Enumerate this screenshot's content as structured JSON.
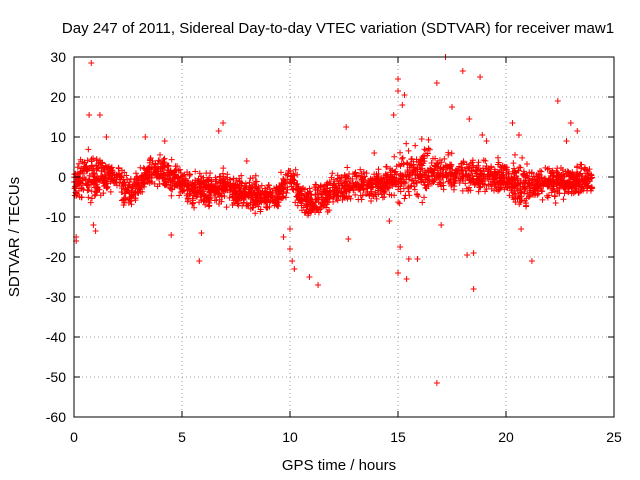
{
  "chart_data": {
    "type": "scatter",
    "title": "Day 247 of 2011, Sidereal Day-to-day VTEC variation (SDTVAR) for receiver maw1",
    "xlabel": "GPS time / hours",
    "ylabel": "SDTVAR / TECUs",
    "xlim": [
      0,
      25
    ],
    "ylim": [
      -60,
      30
    ],
    "xticks": [
      0,
      5,
      10,
      15,
      20,
      25
    ],
    "yticks": [
      -60,
      -50,
      -40,
      -30,
      -20,
      -10,
      0,
      10,
      20,
      30
    ],
    "grid": true,
    "marker": "+",
    "color": "#ff0000",
    "baseline": {
      "x": [
        0,
        1,
        2,
        2.5,
        3,
        3.5,
        4,
        4.5,
        5,
        5.5,
        6,
        7,
        8,
        9,
        9.5,
        10,
        10.5,
        11,
        11.5,
        12,
        12.5,
        13,
        14,
        15,
        16,
        17,
        18,
        19,
        20,
        20.5,
        21,
        22,
        23,
        24
      ],
      "y": [
        -1,
        0,
        0,
        -4,
        -2,
        1,
        1,
        0,
        -2,
        -3,
        -3,
        -3,
        -4,
        -5,
        -4,
        0,
        -5,
        -7,
        -5,
        -4,
        -2,
        -2,
        -2,
        0,
        1,
        1,
        1,
        0,
        0,
        -2,
        -2,
        -1,
        -1,
        -1
      ]
    },
    "outliers": [
      {
        "x": 0.8,
        "y": 28.5
      },
      {
        "x": 0.7,
        "y": 15.5
      },
      {
        "x": 1.2,
        "y": 15.5
      },
      {
        "x": 1.5,
        "y": 10
      },
      {
        "x": 0.1,
        "y": -15
      },
      {
        "x": 0.1,
        "y": -16
      },
      {
        "x": 0.9,
        "y": -12
      },
      {
        "x": 1.0,
        "y": -13.5
      },
      {
        "x": 3.3,
        "y": 10
      },
      {
        "x": 4.2,
        "y": 9
      },
      {
        "x": 4.5,
        "y": -14.5
      },
      {
        "x": 5.8,
        "y": -21
      },
      {
        "x": 5.9,
        "y": -14
      },
      {
        "x": 6.7,
        "y": 11.5
      },
      {
        "x": 6.9,
        "y": 13.5
      },
      {
        "x": 9.7,
        "y": -15
      },
      {
        "x": 10,
        "y": -18
      },
      {
        "x": 10.1,
        "y": -21
      },
      {
        "x": 10.2,
        "y": -23
      },
      {
        "x": 10.0,
        "y": -13
      },
      {
        "x": 10.9,
        "y": -25
      },
      {
        "x": 11.3,
        "y": -27
      },
      {
        "x": 12.7,
        "y": -15.5
      },
      {
        "x": 12.6,
        "y": 12.5
      },
      {
        "x": 14.8,
        "y": 15.5
      },
      {
        "x": 15.0,
        "y": 24.5
      },
      {
        "x": 15.0,
        "y": 21.5
      },
      {
        "x": 15.3,
        "y": 20.5
      },
      {
        "x": 15.2,
        "y": 18
      },
      {
        "x": 15.1,
        "y": -17.5
      },
      {
        "x": 15.0,
        "y": -24
      },
      {
        "x": 15.4,
        "y": -25.5
      },
      {
        "x": 15.5,
        "y": -20.5
      },
      {
        "x": 15.9,
        "y": -20.5
      },
      {
        "x": 14.6,
        "y": -11
      },
      {
        "x": 16.1,
        "y": 9.5
      },
      {
        "x": 16.8,
        "y": 23.5
      },
      {
        "x": 16.8,
        "y": -51.5
      },
      {
        "x": 17.2,
        "y": 30
      },
      {
        "x": 17.0,
        "y": -12
      },
      {
        "x": 17.5,
        "y": 17.5
      },
      {
        "x": 18.0,
        "y": 26.5
      },
      {
        "x": 18.3,
        "y": 14.5
      },
      {
        "x": 18.5,
        "y": -28
      },
      {
        "x": 18.2,
        "y": -19.5
      },
      {
        "x": 18.5,
        "y": -19
      },
      {
        "x": 18.8,
        "y": 25
      },
      {
        "x": 18.9,
        "y": 10.5
      },
      {
        "x": 19.1,
        "y": 9
      },
      {
        "x": 20.3,
        "y": 13.5
      },
      {
        "x": 20.6,
        "y": 10.5
      },
      {
        "x": 20.7,
        "y": -13
      },
      {
        "x": 21.2,
        "y": -21
      },
      {
        "x": 22.4,
        "y": 19
      },
      {
        "x": 22.8,
        "y": 9
      },
      {
        "x": 23.0,
        "y": 13.5
      },
      {
        "x": 23.3,
        "y": 11.5
      },
      {
        "x": 22.3,
        "y": -6.5
      },
      {
        "x": 2.3,
        "y": -7
      },
      {
        "x": 8.0,
        "y": 4
      },
      {
        "x": 13.9,
        "y": 6
      }
    ]
  }
}
